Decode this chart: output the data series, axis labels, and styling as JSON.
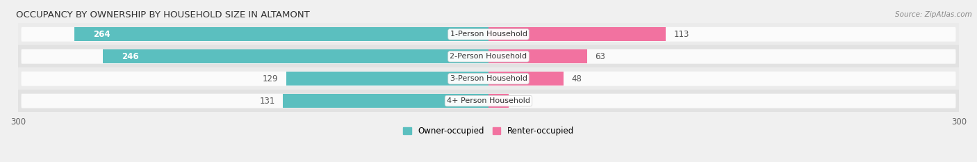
{
  "title": "OCCUPANCY BY OWNERSHIP BY HOUSEHOLD SIZE IN ALTAMONT",
  "source": "Source: ZipAtlas.com",
  "categories": [
    "1-Person Household",
    "2-Person Household",
    "3-Person Household",
    "4+ Person Household"
  ],
  "owner_values": [
    264,
    246,
    129,
    131
  ],
  "renter_values": [
    113,
    63,
    48,
    13
  ],
  "owner_color": "#5bbfbf",
  "renter_color": "#f272a0",
  "row_colors": [
    "#ebebeb",
    "#e2e2e2"
  ],
  "pill_color": "#f7f7f7",
  "label_white": "#ffffff",
  "label_dark": "#555555",
  "axis_max": 300,
  "title_fontsize": 9.5,
  "source_fontsize": 7.5,
  "bar_label_fontsize": 8.5,
  "category_fontsize": 8,
  "legend_fontsize": 8.5,
  "axis_label_fontsize": 8.5
}
